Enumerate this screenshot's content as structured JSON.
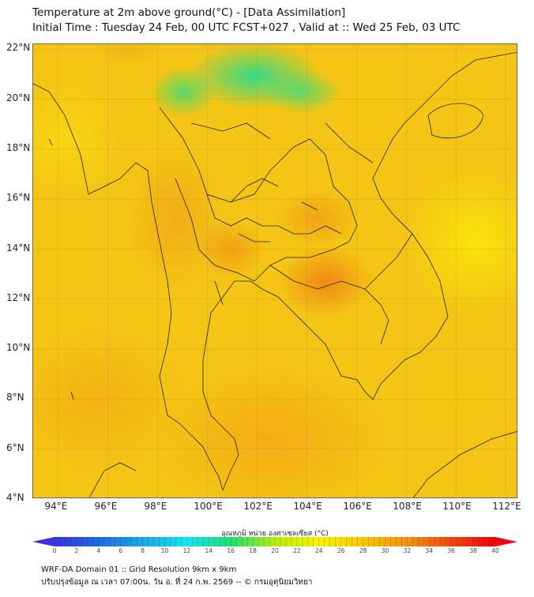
{
  "header": {
    "title": "Temperature at 2m above ground(°C) - [Data Assimilation]",
    "subtitle": "Initial Time : Tuesday 24 Feb, 00 UTC FCST+027 , Valid at :: Wed 25 Feb, 03 UTC"
  },
  "map": {
    "lat_labels": [
      "22°N",
      "20°N",
      "18°N",
      "16°N",
      "14°N",
      "12°N",
      "10°N",
      "8°N",
      "6°N",
      "4°N"
    ],
    "lat_values": [
      22,
      20,
      18,
      16,
      14,
      12,
      10,
      8,
      6,
      4
    ],
    "lon_labels": [
      "94°E",
      "96°E",
      "98°E",
      "100°E",
      "102°E",
      "104°E",
      "106°E",
      "108°E",
      "110°E",
      "112°E"
    ],
    "lon_values": [
      94,
      96,
      98,
      100,
      102,
      104,
      106,
      108,
      110,
      112
    ],
    "extent": {
      "lon_min": 93.0,
      "lon_max": 112.5,
      "lat_min": 4.0,
      "lat_max": 22.2
    }
  },
  "colorbar": {
    "label": "อุณหภูมิ หน่วย องศาเซลเซียส (°C)",
    "ticks": [
      "0",
      "2",
      "4",
      "6",
      "8",
      "10",
      "12",
      "14",
      "16",
      "18",
      "20",
      "22",
      "24",
      "26",
      "28",
      "30",
      "32",
      "34",
      "36",
      "38",
      "40"
    ],
    "min": 0,
    "max": 40,
    "colors": [
      "#3a32e0",
      "#1f6be0",
      "#1aa8e8",
      "#12e6f0",
      "#20e070",
      "#b8ee10",
      "#f6f400",
      "#f8c800",
      "#f69010",
      "#f04a10",
      "#f00010"
    ]
  },
  "footer": {
    "line1": "WRF-DA Domain 01 :: Grid Resolution 9km x 9km",
    "line2": "ปรับปรุงข้อมูล ณ เวลา 07:00น. วัน อ. ที่ 24 ก.พ. 2569 -- © กรมอุตุนิยมวิทยา"
  }
}
